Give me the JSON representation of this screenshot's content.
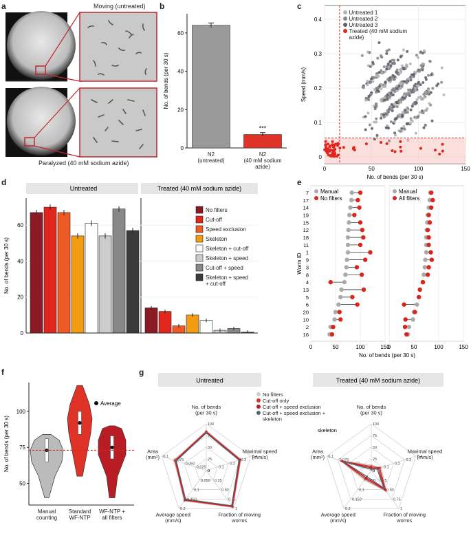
{
  "panel_a": {
    "letter": "a",
    "top_caption": "Moving (untreated)",
    "bottom_caption": "Paralyzed (40 mM sodium azide)"
  },
  "panel_b": {
    "letter": "b",
    "chart_data": {
      "type": "bar",
      "categories": [
        "N2\n(untreated)",
        "N2\n(40 mM sodium\nazide)"
      ],
      "values": [
        64,
        7
      ],
      "errors": [
        1.2,
        1.0
      ],
      "colors": [
        "#999999",
        "#e03328"
      ],
      "ylabel": "No. of bends (per 30 s)",
      "ylim": [
        0,
        70
      ],
      "yticks": [
        0,
        20,
        40,
        60
      ],
      "annotation": "***"
    }
  },
  "panel_c": {
    "letter": "c",
    "chart_data": {
      "type": "scatter",
      "xlabel": "No. of bends (per 30 s)",
      "ylabel": "Speed (mm/s)",
      "xlim": [
        0,
        150
      ],
      "ylim": [
        -0.02,
        0.44
      ],
      "xticks": [
        0,
        50,
        100,
        150
      ],
      "yticks": [
        0,
        0.1,
        0.2,
        0.3,
        0.4
      ],
      "threshold_x": 16,
      "threshold_y": 0.055,
      "legend": [
        "Untreated 1",
        "Untreated 2",
        "Untreated 3",
        "Treated (40 mM sodium azide)"
      ],
      "colors": [
        "#b4b4b4",
        "#8a8a8a",
        "#5f6370",
        "#e0261d"
      ]
    }
  },
  "panel_d": {
    "letter": "d",
    "chart_data": {
      "type": "bar",
      "groups": [
        "Untreated",
        "Treated (40 mM sodium azide)"
      ],
      "series": [
        {
          "name": "No filters",
          "color": "#8b1a24"
        },
        {
          "name": "Cut-off",
          "color": "#e0261d"
        },
        {
          "name": "Speed exclusion",
          "color": "#ee5a24"
        },
        {
          "name": "Skeleton",
          "color": "#f39c12"
        },
        {
          "name": "Skeleton + cut-off",
          "color": "#ffffff"
        },
        {
          "name": "Skeleton + speed",
          "color": "#cccccc"
        },
        {
          "name": "Cut-off + speed",
          "color": "#888888"
        },
        {
          "name": "Skeleton + speed\n+ cut-off",
          "color": "#3b3b3b"
        }
      ],
      "untreated_values": [
        67,
        70,
        67,
        54,
        61,
        54,
        69,
        57
      ],
      "treated_values": [
        14,
        12,
        4,
        10,
        7,
        1.5,
        2.5,
        0.5
      ],
      "ylabel": "No. of bends (per 30 s)",
      "ylim": [
        0,
        75
      ],
      "yticks": [
        0,
        20,
        40,
        60
      ]
    }
  },
  "panel_e": {
    "letter": "e",
    "chart_data": {
      "type": "scatter",
      "ylabel": "Worm ID",
      "xlabel": "No. of bends (per 30 s)",
      "worm_ids": [
        "7",
        "17",
        "14",
        "19",
        "15",
        "12",
        "18",
        "11",
        "1",
        "9",
        "3",
        "8",
        "4",
        "13",
        "5",
        "6",
        "20",
        "10",
        "2",
        "16"
      ],
      "manual": [
        83,
        82,
        80,
        78,
        77,
        76,
        75,
        75,
        75,
        73,
        72,
        70,
        68,
        62,
        60,
        56,
        50,
        48,
        40,
        38
      ],
      "no_filters": [
        100,
        95,
        98,
        88,
        100,
        104,
        106,
        100,
        120,
        110,
        93,
        103,
        40,
        107,
        84,
        94,
        58,
        60,
        45,
        43
      ],
      "all_filters": [
        85,
        88,
        85,
        80,
        82,
        78,
        80,
        80,
        84,
        86,
        80,
        78,
        68,
        62,
        60,
        30,
        52,
        33,
        32,
        35
      ],
      "legend_left": [
        "Manual",
        "No filters"
      ],
      "legend_right": [
        "Manual",
        "All filters"
      ],
      "xlim": [
        0,
        150
      ],
      "xticks": [
        0,
        50,
        100,
        150
      ]
    }
  },
  "panel_f": {
    "letter": "f",
    "chart_data": {
      "type": "violin",
      "categories": [
        "Manual\ncounting",
        "Standard\nWF-NTP",
        "WF-NTP +\nall filters"
      ],
      "medians": [
        73,
        92,
        75
      ],
      "colors": [
        "#bbbbbb",
        "#e03328",
        "#b91c24"
      ],
      "ylabel": "No. of bends (per 30 s)",
      "ylim": [
        35,
        120
      ],
      "yticks": [
        50,
        75,
        100,
        125
      ],
      "reference_line": 73,
      "legend": "Average"
    }
  },
  "panel_g": {
    "letter": "g",
    "chart_data": {
      "type": "radar",
      "titles": [
        "Untreated",
        "Treated (40 mM sodium azide)"
      ],
      "axes": [
        "No. of bends\n(per 30 s)",
        "Maximal speed\n(mm/s)",
        "Fraction of moving\nworms",
        "Average speed\n(mm/s)",
        "Area\n(mm²)"
      ],
      "legend": [
        "No filters",
        "Cut-off only",
        "Cut-off + speed exclusion",
        "Cut-off + speed exclusion +\nskeleton"
      ],
      "legend_colors": [
        "#cccccc",
        "#e03328",
        "#b91c24",
        "#5f6370"
      ],
      "extra_label": "skeleton",
      "tick_labels_bends": [
        "0",
        "25",
        "50",
        "75",
        "100"
      ],
      "tick_labels_maxspeed": [
        "0",
        "0.1",
        "0.2",
        "0.3",
        "0.4"
      ],
      "tick_labels_fraction": [
        "0",
        "0.25",
        "0.50",
        "0.75",
        "1"
      ],
      "tick_labels_avgspeed": [
        "0",
        "0.050",
        "0.1",
        "0.150",
        "0.2"
      ],
      "tick_labels_area": [
        "0",
        "0.025",
        "0.050",
        "0.075",
        "0.1"
      ],
      "untreated_values": [
        0.85,
        0.78,
        0.97,
        0.8,
        0.72
      ],
      "treated_values": [
        0.12,
        0.22,
        0.55,
        0.25,
        0.7
      ]
    }
  }
}
